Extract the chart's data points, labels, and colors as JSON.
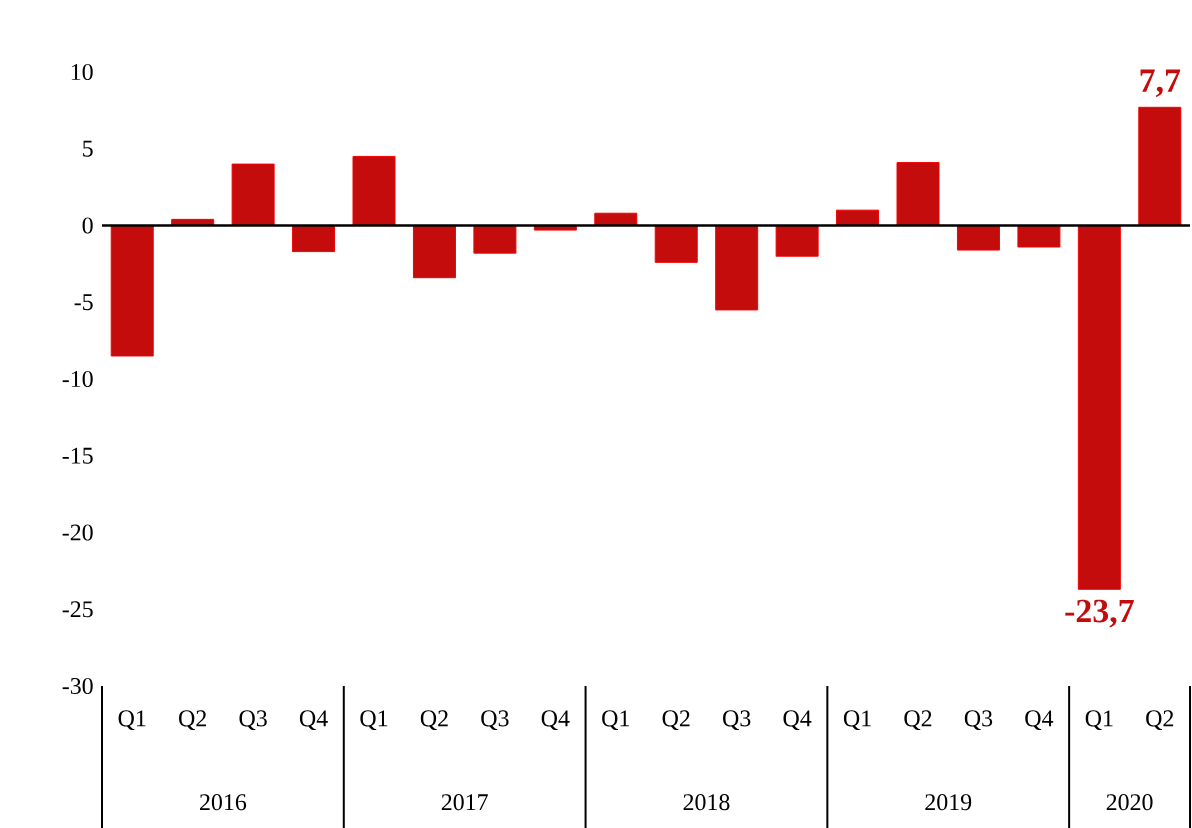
{
  "chart_data": {
    "type": "bar",
    "categories": [
      "Q1",
      "Q2",
      "Q3",
      "Q4",
      "Q1",
      "Q2",
      "Q3",
      "Q4",
      "Q1",
      "Q2",
      "Q3",
      "Q4",
      "Q1",
      "Q2",
      "Q3",
      "Q4",
      "Q1",
      "Q2"
    ],
    "values": [
      -8.5,
      0.4,
      4.0,
      -1.7,
      4.5,
      -3.4,
      -1.8,
      -0.3,
      0.8,
      -2.4,
      -5.5,
      -2.0,
      1.0,
      4.1,
      -1.6,
      -1.4,
      -23.7,
      7.7
    ],
    "value_labels": [
      null,
      null,
      null,
      null,
      null,
      null,
      null,
      null,
      null,
      null,
      null,
      null,
      null,
      null,
      null,
      null,
      "-23,7",
      "7,7"
    ],
    "color": "#c40c0c",
    "ylim": [
      -30,
      10
    ],
    "yticks": [
      -30,
      -25,
      -20,
      -15,
      -10,
      -5,
      0,
      5,
      10
    ],
    "annotations": [
      "2016",
      "2017",
      "2018",
      "2019",
      "2020"
    ]
  }
}
